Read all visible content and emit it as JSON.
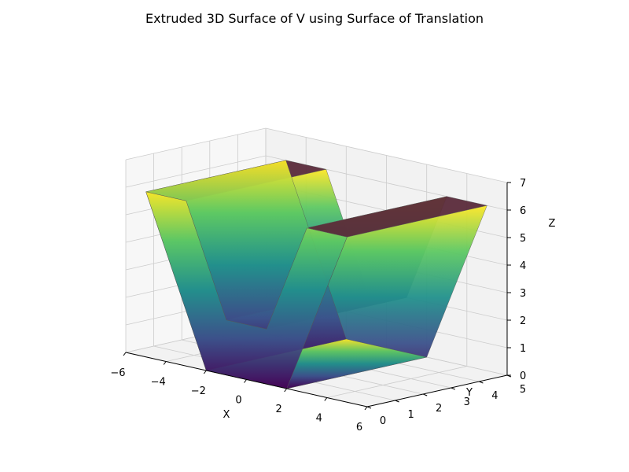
{
  "chart_data": {
    "type": "surface3d",
    "title": "Extruded 3D Surface of V using Surface of Translation",
    "xlabel": "X",
    "ylabel": "Y",
    "zlabel": "Z",
    "xlim": [
      -6,
      6
    ],
    "ylim": [
      0,
      5
    ],
    "zlim": [
      0,
      7
    ],
    "x_ticks": [
      "−6",
      "−4",
      "−2",
      "0",
      "2",
      "4",
      "6"
    ],
    "y_ticks": [
      "0",
      "1",
      "2",
      "3",
      "4",
      "5"
    ],
    "z_ticks": [
      "0",
      "1",
      "2",
      "3",
      "4",
      "5",
      "6",
      "7"
    ],
    "grid": true,
    "colormap": "viridis",
    "colormap_stops": [
      "#440154",
      "#3b528b",
      "#21918c",
      "#5ec962",
      "#fde725"
    ],
    "cap_color": "#5a2a3a",
    "edge_color": "#555555",
    "profile_polygon": [
      [
        -5,
        5
      ],
      [
        -3,
        5
      ],
      [
        -1,
        1
      ],
      [
        1,
        1
      ],
      [
        3,
        5
      ],
      [
        5,
        5
      ],
      [
        2,
        -1
      ],
      [
        -2,
        -1
      ]
    ],
    "extrusion_y": [
      0,
      5
    ]
  }
}
